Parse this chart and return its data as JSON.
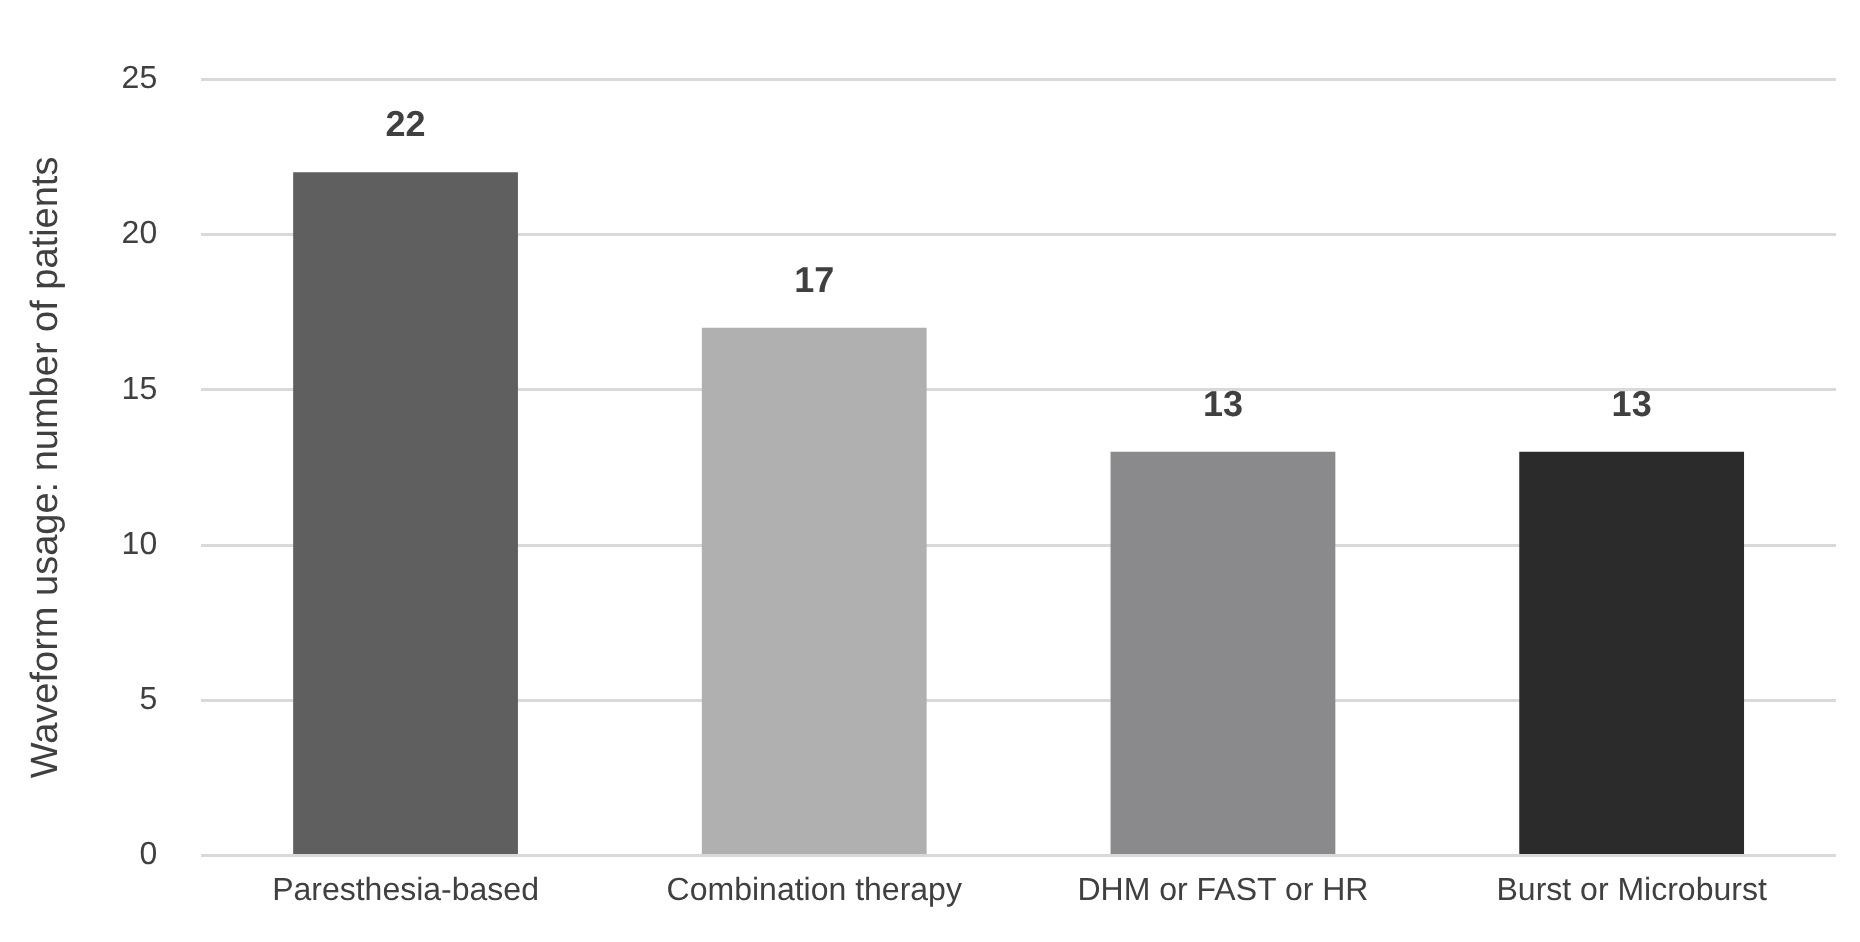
{
  "chart_data": {
    "type": "bar",
    "ylabel": "Waveform usage: number of patients",
    "categories": [
      "Paresthesia-based",
      "Combination therapy",
      "DHM or FAST or HR",
      "Burst or Microburst"
    ],
    "values": [
      22,
      17,
      13,
      13
    ],
    "colors": [
      "#5f5f5f",
      "#b0b0b0",
      "#8a8a8c",
      "#2b2b2b"
    ],
    "ylim": [
      0,
      25
    ],
    "yticks": [
      0,
      5,
      10,
      15,
      20,
      25
    ],
    "grid": "y",
    "legend": false,
    "data_labels": true
  }
}
